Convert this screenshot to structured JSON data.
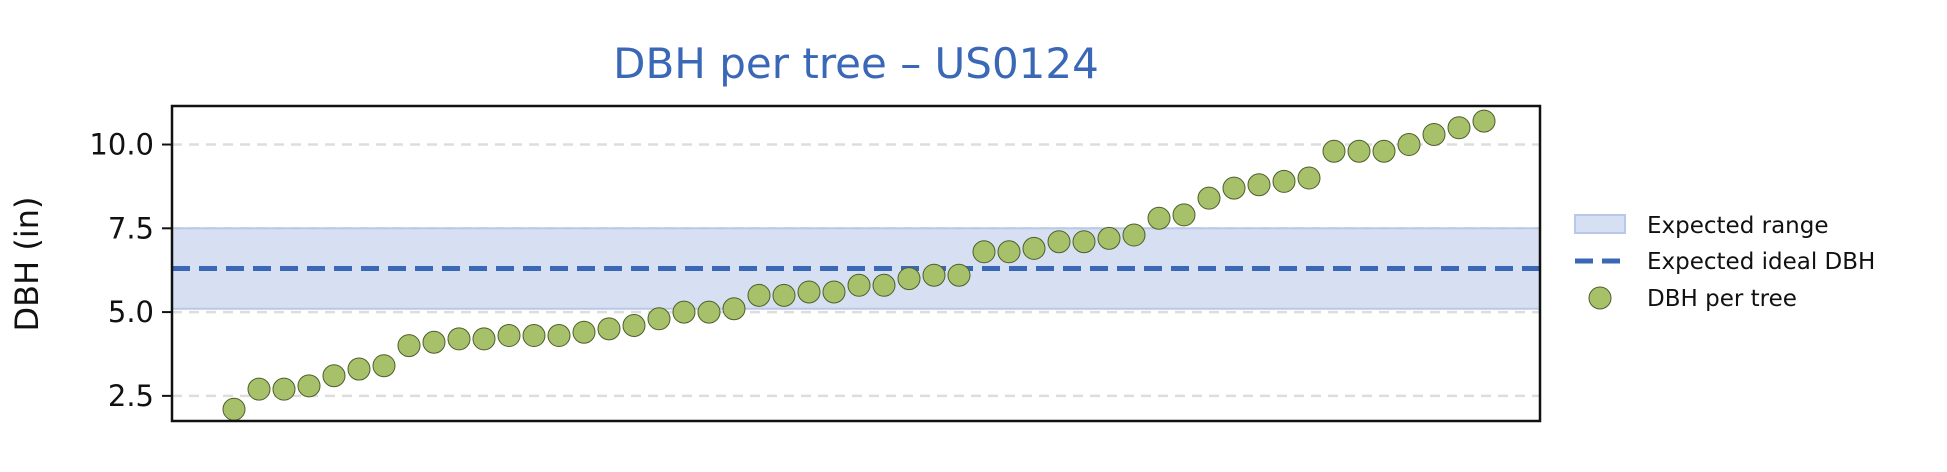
{
  "chart_data": {
    "type": "scatter",
    "title": "DBH per tree – US0124",
    "ylabel": "DBH (in)",
    "ylim": [
      1.75,
      11.15
    ],
    "yticks": [
      2.5,
      5.0,
      7.5,
      10.0
    ],
    "ytick_labels": [
      "2.5",
      "5.0",
      "7.5",
      "10.0"
    ],
    "x_ticks_shown": false,
    "grid": "horizontal-dashed",
    "legend_position": "right",
    "expected_range": {
      "label": "Expected range",
      "low": 5.1,
      "high": 7.5
    },
    "expected_ideal": {
      "label": "Expected ideal DBH",
      "value": 6.3
    },
    "series": [
      {
        "name": "DBH per tree",
        "values": [
          2.1,
          2.7,
          2.7,
          2.8,
          3.1,
          3.3,
          3.4,
          4.0,
          4.1,
          4.2,
          4.2,
          4.3,
          4.3,
          4.3,
          4.4,
          4.5,
          4.6,
          4.8,
          5.0,
          5.0,
          5.1,
          5.5,
          5.5,
          5.6,
          5.6,
          5.8,
          5.8,
          6.0,
          6.1,
          6.1,
          6.8,
          6.8,
          6.9,
          7.1,
          7.1,
          7.2,
          7.3,
          7.8,
          7.9,
          8.4,
          8.7,
          8.8,
          8.9,
          9.0,
          9.8,
          9.8,
          9.8,
          10.0,
          10.3,
          10.5,
          10.7
        ]
      }
    ],
    "colors": {
      "title": "#3a68b6",
      "point_fill": "#a6c16a",
      "point_edge": "#4f5e2c",
      "range_fill": "#d7e0f2",
      "range_edge": "#b9c8e6",
      "ideal_line": "#3a68b6",
      "grid": "#dddddd"
    }
  }
}
